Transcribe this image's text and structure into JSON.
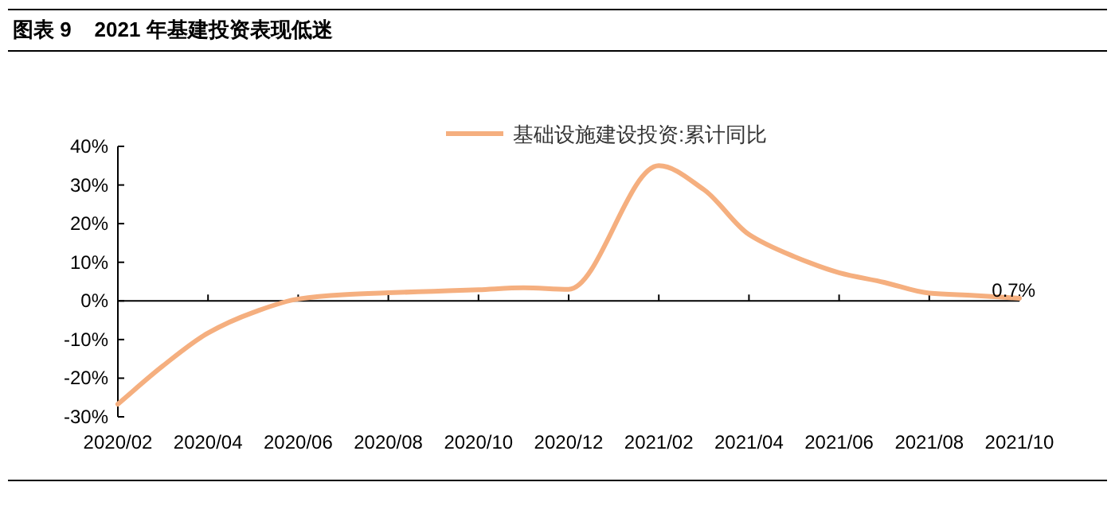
{
  "chart_data": {
    "type": "line",
    "title": "图表 9    2021 年基建投资表现低迷",
    "x": [
      "2020-02",
      "2020-03",
      "2020-04",
      "2020-05",
      "2020-06",
      "2020-07",
      "2020-08",
      "2020-09",
      "2020-10",
      "2020-11",
      "2020-12",
      "2021-02",
      "2021-03",
      "2021-04",
      "2021-05",
      "2021-06",
      "2021-07",
      "2021-08",
      "2021-09",
      "2021-10"
    ],
    "series": [
      {
        "name": "基础设施建设投资:累计同比",
        "color": "#f5af7f",
        "values": [
          -26.7,
          -16.8,
          -8.3,
          -3.0,
          0.5,
          1.6,
          2.1,
          2.5,
          2.9,
          3.4,
          3.0,
          35.0,
          28.8,
          17.2,
          11.5,
          7.3,
          4.8,
          2.0,
          1.4,
          0.7
        ],
        "value_labels": [
          null,
          null,
          null,
          null,
          null,
          null,
          null,
          null,
          null,
          null,
          null,
          null,
          null,
          null,
          null,
          null,
          null,
          null,
          null,
          "0.7%"
        ]
      }
    ],
    "xlim": [
      "2020-02",
      "2021-10"
    ],
    "xticks": [
      {
        "value": "2020-02",
        "label": "2020/02"
      },
      {
        "value": "2020-04",
        "label": "2020/04"
      },
      {
        "value": "2020-06",
        "label": "2020/06"
      },
      {
        "value": "2020-08",
        "label": "2020/08"
      },
      {
        "value": "2020-10",
        "label": "2020/10"
      },
      {
        "value": "2020-12",
        "label": "2020/12"
      },
      {
        "value": "2021-02",
        "label": "2021/02"
      },
      {
        "value": "2021-04",
        "label": "2021/04"
      },
      {
        "value": "2021-06",
        "label": "2021/06"
      },
      {
        "value": "2021-08",
        "label": "2021/08"
      },
      {
        "value": "2021-10",
        "label": "2021/10"
      }
    ],
    "ylim": [
      -30,
      40
    ],
    "yticks": [
      {
        "value": 40,
        "label": "40%"
      },
      {
        "value": 30,
        "label": "30%"
      },
      {
        "value": 20,
        "label": "20%"
      },
      {
        "value": 10,
        "label": "10%"
      },
      {
        "value": 0,
        "label": "0%"
      },
      {
        "value": -10,
        "label": "-10%"
      },
      {
        "value": -20,
        "label": "-20%"
      },
      {
        "value": -30,
        "label": "-30%"
      }
    ],
    "legend": "top",
    "marker": "none",
    "line_style": "solid"
  }
}
